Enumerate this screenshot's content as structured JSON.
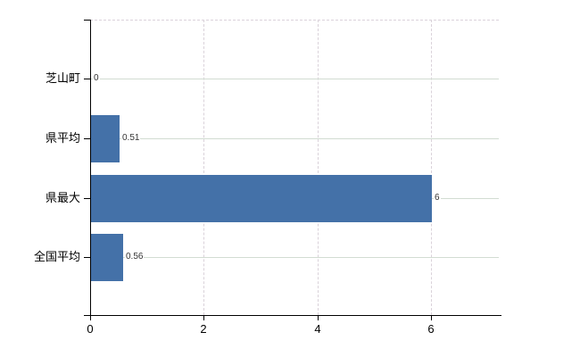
{
  "chart_data": {
    "type": "bar",
    "orientation": "horizontal",
    "title": "",
    "xlabel": "",
    "ylabel": "",
    "categories": [
      "芝山町",
      "県平均",
      "県最大",
      "全国平均"
    ],
    "values": [
      0,
      0.51,
      6,
      0.56
    ],
    "value_labels": [
      "0",
      "0.51",
      "6",
      "0.56"
    ],
    "xticks": [
      0,
      2,
      4,
      6
    ],
    "xtick_labels": [
      "0",
      "2",
      "4",
      "6"
    ],
    "xlim": [
      0,
      7.19
    ],
    "grid": true,
    "legend": false,
    "colors": {
      "bar": "#4471a8",
      "axis": "#000000",
      "category_label": "#000000",
      "x_tick_label": "#000000",
      "value_label": "#333333",
      "h_gridline": "#d2dcd2",
      "v_gridline": "#dad2da",
      "background": "#ffffff"
    }
  }
}
